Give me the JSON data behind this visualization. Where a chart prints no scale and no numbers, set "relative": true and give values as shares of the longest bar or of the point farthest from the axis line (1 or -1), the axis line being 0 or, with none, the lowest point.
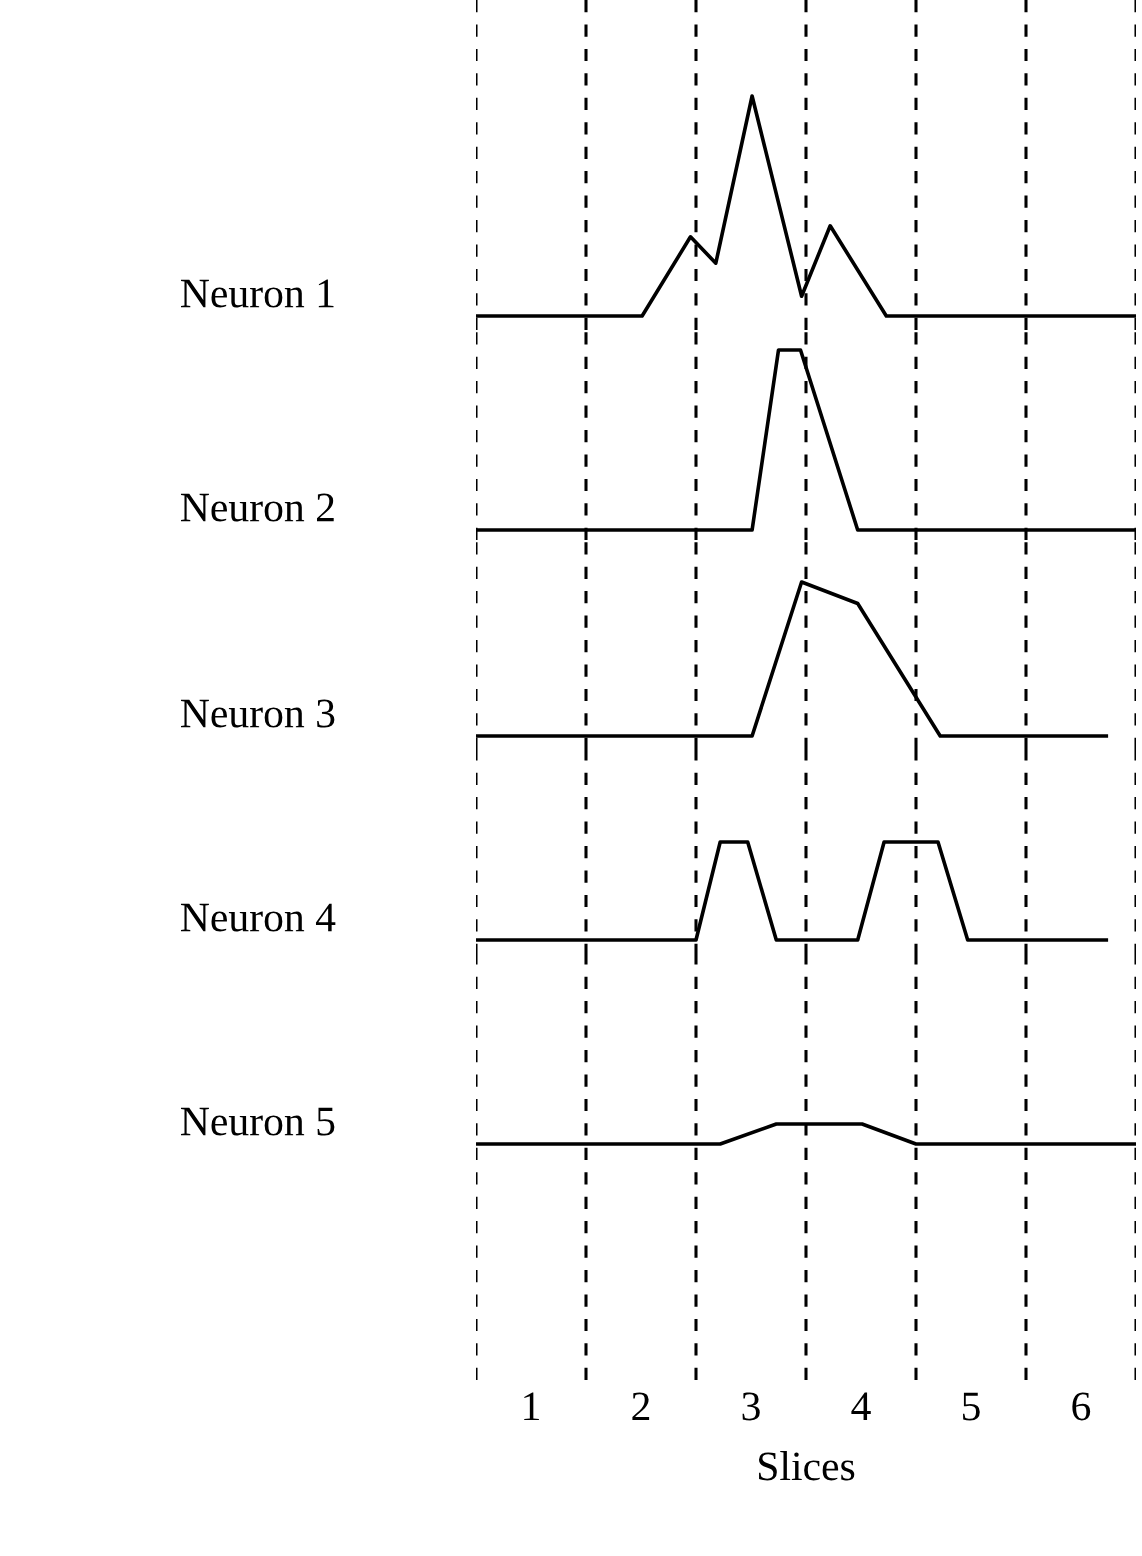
{
  "chart_data": [
    {
      "type": "line",
      "relative": true,
      "xlim": [
        0,
        6
      ],
      "tick_labels": false,
      "line_style": "solid",
      "ref_lines": [
        {
          "axis": "x",
          "value": 0,
          "line_style": "dashed"
        },
        {
          "axis": "x",
          "value": 1,
          "line_style": "dashed"
        },
        {
          "axis": "x",
          "value": 2,
          "line_style": "dashed"
        },
        {
          "axis": "x",
          "value": 3,
          "line_style": "dashed"
        },
        {
          "axis": "x",
          "value": 4,
          "line_style": "dashed"
        },
        {
          "axis": "x",
          "value": 5,
          "line_style": "dashed"
        },
        {
          "axis": "x",
          "value": 6,
          "line_style": "dashed"
        }
      ],
      "series": [
        {
          "name": "Neuron 1",
          "color": "#000000",
          "x": [
            0,
            1.51,
            1.95,
            2.18,
            2.51,
            2.96,
            3.22,
            3.73,
            6
          ],
          "values": [
            0,
            0,
            0.36,
            0.24,
            1,
            0.09,
            0.41,
            0,
            0
          ]
        }
      ]
    },
    {
      "type": "line",
      "relative": true,
      "xlim": [
        0,
        6
      ],
      "tick_labels": false,
      "line_style": "solid",
      "ref_lines": [
        {
          "axis": "x",
          "value": 0,
          "line_style": "dashed"
        },
        {
          "axis": "x",
          "value": 1,
          "line_style": "dashed"
        },
        {
          "axis": "x",
          "value": 2,
          "line_style": "dashed"
        },
        {
          "axis": "x",
          "value": 3,
          "line_style": "dashed"
        },
        {
          "axis": "x",
          "value": 4,
          "line_style": "dashed"
        },
        {
          "axis": "x",
          "value": 5,
          "line_style": "dashed"
        },
        {
          "axis": "x",
          "value": 6,
          "line_style": "dashed"
        }
      ],
      "series": [
        {
          "name": "Neuron 2",
          "color": "#000000",
          "x": [
            0,
            2.51,
            2.75,
            2.95,
            3.47,
            6
          ],
          "values": [
            0,
            0,
            1,
            1,
            0,
            0
          ]
        }
      ]
    },
    {
      "type": "line",
      "relative": true,
      "xlim": [
        0,
        6
      ],
      "tick_labels": false,
      "line_style": "solid",
      "ref_lines": [
        {
          "axis": "x",
          "value": 0,
          "line_style": "dashed"
        },
        {
          "axis": "x",
          "value": 1,
          "line_style": "dashed"
        },
        {
          "axis": "x",
          "value": 2,
          "line_style": "dashed"
        },
        {
          "axis": "x",
          "value": 3,
          "line_style": "dashed"
        },
        {
          "axis": "x",
          "value": 4,
          "line_style": "dashed"
        },
        {
          "axis": "x",
          "value": 5,
          "line_style": "dashed"
        },
        {
          "axis": "x",
          "value": 6,
          "line_style": "dashed"
        }
      ],
      "series": [
        {
          "name": "Neuron 3",
          "color": "#000000",
          "x": [
            0,
            2.51,
            2.96,
            3.47,
            4.22,
            5.73
          ],
          "values": [
            0,
            0,
            1,
            0.86,
            0,
            0
          ]
        }
      ]
    },
    {
      "type": "line",
      "relative": true,
      "xlim": [
        0,
        6
      ],
      "tick_labels": false,
      "line_style": "solid",
      "ref_lines": [
        {
          "axis": "x",
          "value": 0,
          "line_style": "dashed"
        },
        {
          "axis": "x",
          "value": 1,
          "line_style": "dashed"
        },
        {
          "axis": "x",
          "value": 2,
          "line_style": "dashed"
        },
        {
          "axis": "x",
          "value": 3,
          "line_style": "dashed"
        },
        {
          "axis": "x",
          "value": 4,
          "line_style": "dashed"
        },
        {
          "axis": "x",
          "value": 5,
          "line_style": "dashed"
        },
        {
          "axis": "x",
          "value": 6,
          "line_style": "dashed"
        }
      ],
      "series": [
        {
          "name": "Neuron 4",
          "color": "#000000",
          "x": [
            0,
            2.0,
            2.22,
            2.47,
            2.73,
            3.47,
            3.71,
            4.2,
            4.47,
            5.73
          ],
          "values": [
            0,
            0,
            1,
            1,
            0,
            0,
            1,
            1,
            0,
            0
          ]
        }
      ]
    },
    {
      "type": "line",
      "relative": true,
      "xlim": [
        0,
        6
      ],
      "xticks": [
        {
          "value": 0.5,
          "label": "1"
        },
        {
          "value": 1.5,
          "label": "2"
        },
        {
          "value": 2.5,
          "label": "3"
        },
        {
          "value": 3.5,
          "label": "4"
        },
        {
          "value": 4.5,
          "label": "5"
        },
        {
          "value": 5.5,
          "label": "6"
        }
      ],
      "tick_labels": "x",
      "line_style": "solid",
      "xlabel": "Slices",
      "ref_lines": [
        {
          "axis": "x",
          "value": 0,
          "line_style": "dashed"
        },
        {
          "axis": "x",
          "value": 1,
          "line_style": "dashed"
        },
        {
          "axis": "x",
          "value": 2,
          "line_style": "dashed"
        },
        {
          "axis": "x",
          "value": 3,
          "line_style": "dashed"
        },
        {
          "axis": "x",
          "value": 4,
          "line_style": "dashed"
        },
        {
          "axis": "x",
          "value": 5,
          "line_style": "dashed"
        },
        {
          "axis": "x",
          "value": 6,
          "line_style": "dashed"
        }
      ],
      "series": [
        {
          "name": "Neuron 5",
          "color": "#000000",
          "x": [
            0,
            2.22,
            2.73,
            3.51,
            4.0,
            6
          ],
          "values": [
            0,
            0,
            1,
            1,
            0,
            0
          ]
        }
      ]
    }
  ]
}
